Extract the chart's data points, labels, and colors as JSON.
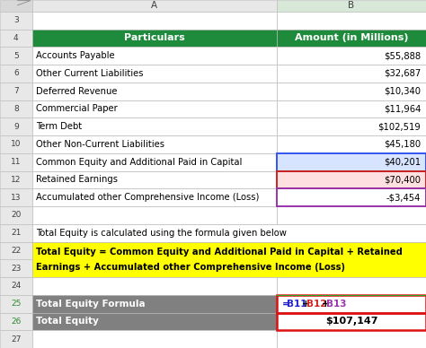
{
  "col_a_label": "Particulars",
  "col_b_label": "Amount (in Millions)",
  "header_bg": "#1E8B3C",
  "header_fg": "#FFFFFF",
  "rows": [
    {
      "row": 5,
      "label": "Accounts Payable",
      "value": "$55,888",
      "value_bg": "#FFFFFF",
      "highlight_b": null
    },
    {
      "row": 6,
      "label": "Other Current Liabilities",
      "value": "$32,687",
      "value_bg": "#FFFFFF",
      "highlight_b": null
    },
    {
      "row": 7,
      "label": "Deferred Revenue",
      "value": "$10,340",
      "value_bg": "#FFFFFF",
      "highlight_b": null
    },
    {
      "row": 8,
      "label": "Commercial Paper",
      "value": "$11,964",
      "value_bg": "#FFFFFF",
      "highlight_b": null
    },
    {
      "row": 9,
      "label": "Term Debt",
      "value": "$102,519",
      "value_bg": "#FFFFFF",
      "highlight_b": null
    },
    {
      "row": 10,
      "label": "Other Non-Current Liabilities",
      "value": "$45,180",
      "value_bg": "#FFFFFF",
      "highlight_b": null
    },
    {
      "row": 11,
      "label": "Common Equity and Additional Paid in Capital",
      "value": "$40,201",
      "value_bg": "#D6E4FF",
      "highlight_b": "#3355EE"
    },
    {
      "row": 12,
      "label": "Retained Earnings",
      "value": "$70,400",
      "value_bg": "#FFE0E0",
      "highlight_b": "#CC2222"
    },
    {
      "row": 13,
      "label": "Accumulated other Comprehensive Income (Loss)",
      "value": "-$3,454",
      "value_bg": "#FFFFFF",
      "highlight_b": "#9933AA"
    }
  ],
  "row_21_text": "Total Equity is calculated using the formula given below",
  "formula_line1": "Total Equity = Common Equity and Additional Paid in Capital + Retained",
  "formula_line2": "Earnings + Accumulated other Comprehensive Income (Loss)",
  "formula_bg": "#FFFF00",
  "formula_parts": [
    {
      "text": "=",
      "color": "#2222CC"
    },
    {
      "text": "B11",
      "color": "#2222CC"
    },
    {
      "text": "+",
      "color": "#000000"
    },
    {
      "text": "B12",
      "color": "#CC2222"
    },
    {
      "text": "+",
      "color": "#000000"
    },
    {
      "text": "B13",
      "color": "#9933AA"
    }
  ],
  "total_equity_value": "$107,147",
  "grid_color": "#B8B8B8",
  "rn_color_normal": "#404040",
  "rn_color_green": "#2E8B2E",
  "fig_bg": "#FFFFFF",
  "cell_font_size": 7.2,
  "header_font_size": 8.0,
  "formula_font_size": 7.2,
  "summary_font_size": 7.5
}
